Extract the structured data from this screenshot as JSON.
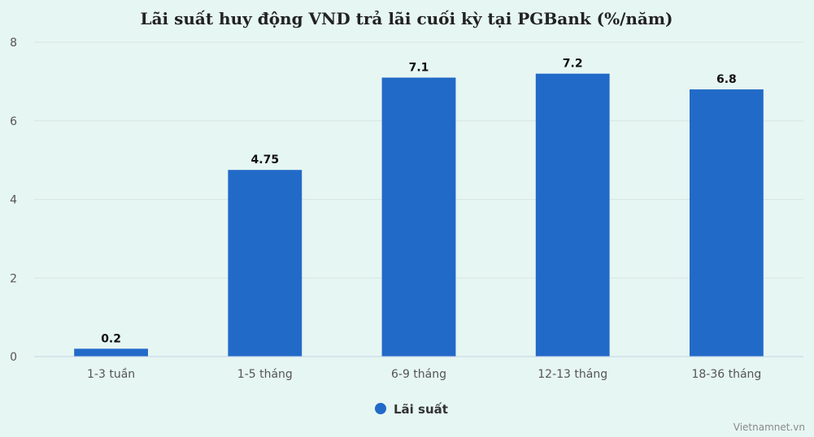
{
  "chart_data": {
    "type": "bar",
    "title": "Lãi suất huy động VND trả lãi cuối kỳ tại PGBank (%/năm)",
    "categories": [
      "1-3 tuần",
      "1-5 tháng",
      "6-9 tháng",
      "12-13 tháng",
      "18-36 tháng"
    ],
    "series": [
      {
        "name": "Lãi suất",
        "values": [
          0.2,
          4.75,
          7.1,
          7.2,
          6.8
        ],
        "color": "#226ac8"
      }
    ],
    "value_labels": [
      "0.2",
      "4.75",
      "7.1",
      "7.2",
      "6.8"
    ],
    "ylim": [
      0,
      8
    ],
    "yticks": [
      0,
      2,
      4,
      6,
      8
    ],
    "xlabel": "",
    "ylabel": "",
    "grid": true,
    "legend": "bottom-center"
  },
  "watermark": "Vietnamnet.vn"
}
